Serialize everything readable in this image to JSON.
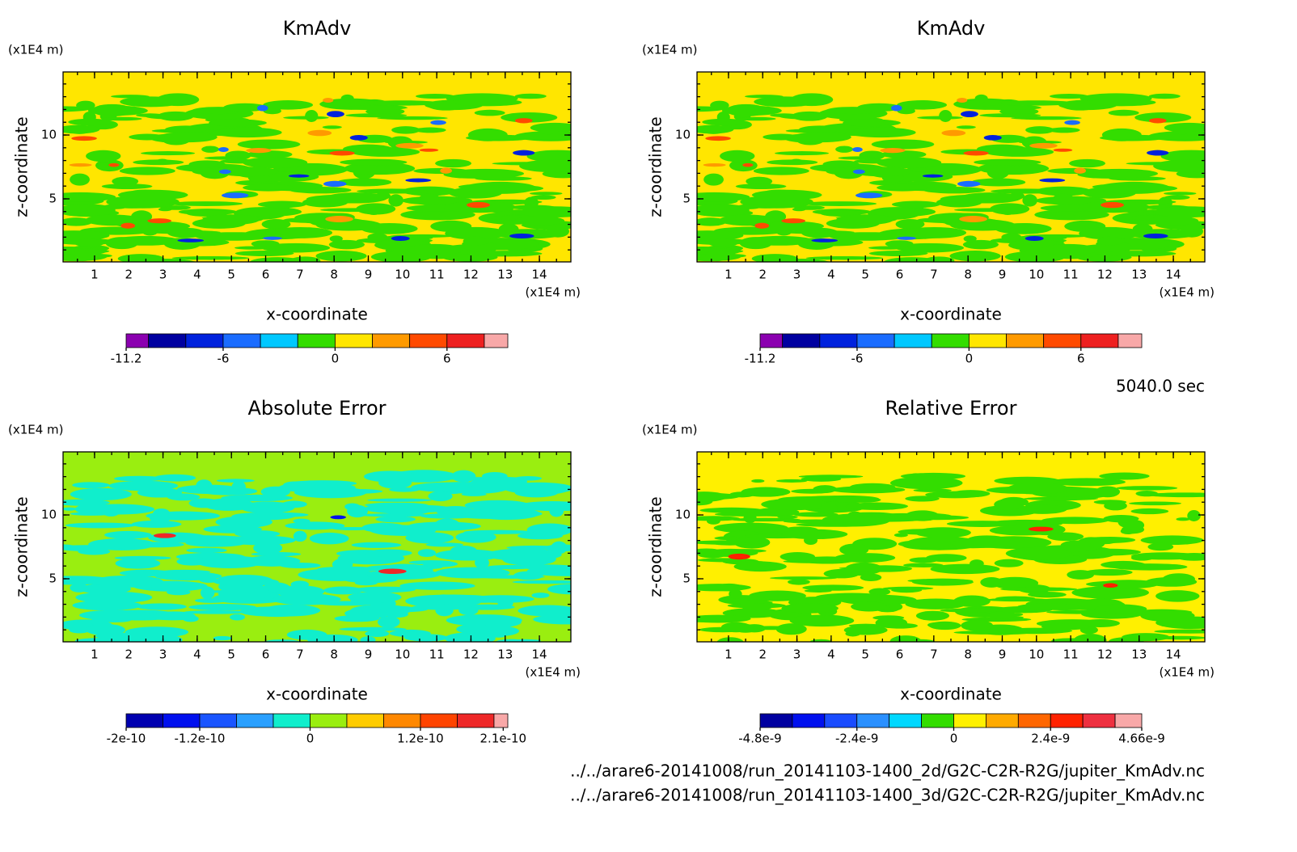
{
  "chart_data": [
    {
      "type": "contour",
      "title": "KmAdv",
      "xlabel": "x-coordinate",
      "ylabel": "z-coordinate",
      "x_unit": "(x1E4 m)",
      "y_unit": "(x1E4 m)",
      "xlim": [
        0.08,
        14.92
      ],
      "ylim": [
        0.06,
        14.94
      ],
      "xticks": [
        1,
        2,
        3,
        4,
        5,
        6,
        7,
        8,
        9,
        10,
        11,
        12,
        13,
        14
      ],
      "yticks": [
        5,
        10
      ],
      "colorbar": {
        "levels": [
          -11.2,
          -10,
          -8,
          -6,
          -4,
          -2,
          0,
          2,
          4,
          6,
          8,
          9.26
        ],
        "colors": [
          "#8b00b0",
          "#0000a0",
          "#0022dd",
          "#1a6cff",
          "#00c8ff",
          "#33dd00",
          "#ffe600",
          "#ff9a00",
          "#ff4a00",
          "#ee2020",
          "#f8a8a8"
        ],
        "ticks": [
          -11.2,
          -6,
          0,
          6
        ]
      }
    },
    {
      "type": "contour",
      "title": "KmAdv",
      "xlabel": "x-coordinate",
      "ylabel": "z-coordinate",
      "x_unit": "(x1E4 m)",
      "y_unit": "(x1E4 m)",
      "xlim": [
        0.08,
        14.92
      ],
      "ylim": [
        0.06,
        14.94
      ],
      "xticks": [
        1,
        2,
        3,
        4,
        5,
        6,
        7,
        8,
        9,
        10,
        11,
        12,
        13,
        14
      ],
      "yticks": [
        5,
        10
      ],
      "colorbar": {
        "levels": [
          -11.2,
          -10,
          -8,
          -6,
          -4,
          -2,
          0,
          2,
          4,
          6,
          8,
          9.26
        ],
        "colors": [
          "#8b00b0",
          "#0000a0",
          "#0022dd",
          "#1a6cff",
          "#00c8ff",
          "#33dd00",
          "#ffe600",
          "#ff9a00",
          "#ff4a00",
          "#ee2020",
          "#f8a8a8"
        ],
        "ticks": [
          -11.2,
          -6,
          0,
          6
        ]
      }
    },
    {
      "type": "contour",
      "title": "Absolute Error",
      "xlabel": "x-coordinate",
      "ylabel": "z-coordinate",
      "x_unit": "(x1E4 m)",
      "y_unit": "(x1E4 m)",
      "xlim": [
        0.08,
        14.92
      ],
      "ylim": [
        0.06,
        14.94
      ],
      "xticks": [
        1,
        2,
        3,
        4,
        5,
        6,
        7,
        8,
        9,
        10,
        11,
        12,
        13,
        14
      ],
      "yticks": [
        5,
        10
      ],
      "colorbar": {
        "levels": [
          -2e-10,
          -1.6e-10,
          -1.2e-10,
          -8e-11,
          -4e-11,
          0,
          4e-11,
          8e-11,
          1.2e-10,
          1.6e-10,
          2e-10,
          2.15e-10
        ],
        "colors": [
          "#0000b0",
          "#0010ee",
          "#1a55ff",
          "#2aa0ff",
          "#10eecc",
          "#9aee10",
          "#ffcc00",
          "#ff8800",
          "#ff4400",
          "#ee2828",
          "#f8a8a8"
        ],
        "ticks": [
          -2e-10,
          -1.2e-10,
          0,
          1.2e-10,
          2.1e-10
        ]
      }
    },
    {
      "type": "contour",
      "title": "Relative Error",
      "xlabel": "x-coordinate",
      "ylabel": "z-coordinate",
      "x_unit": "(x1E4 m)",
      "y_unit": "(x1E4 m)",
      "xlim": [
        0.08,
        14.92
      ],
      "ylim": [
        0.06,
        14.94
      ],
      "xticks": [
        1,
        2,
        3,
        4,
        5,
        6,
        7,
        8,
        9,
        10,
        11,
        12,
        13,
        14
      ],
      "yticks": [
        5,
        10
      ],
      "colorbar": {
        "levels": [
          -4.8e-09,
          -4e-09,
          -3.2e-09,
          -2.4e-09,
          -1.6e-09,
          -8e-10,
          0,
          8e-10,
          1.6e-09,
          2.4e-09,
          3.2e-09,
          4e-09,
          4.66e-09
        ],
        "colors": [
          "#0000a0",
          "#0010ee",
          "#1a4cff",
          "#2a90ff",
          "#00d8ff",
          "#33dd00",
          "#fff000",
          "#ffaa00",
          "#ff6600",
          "#ff2200",
          "#ee3040",
          "#f8a8a8"
        ],
        "ticks": [
          -4.8e-09,
          -2.4e-09,
          0,
          2.4e-09,
          4.66e-09
        ]
      }
    }
  ],
  "time_label": "5040.0 sec",
  "files": [
    "../../arare6-20141008/run_20141103-1400_2d/G2C-C2R-R2G/jupiter_KmAdv.nc",
    "../../arare6-20141008/run_20141103-1400_3d/G2C-C2R-R2G/jupiter_KmAdv.nc"
  ]
}
